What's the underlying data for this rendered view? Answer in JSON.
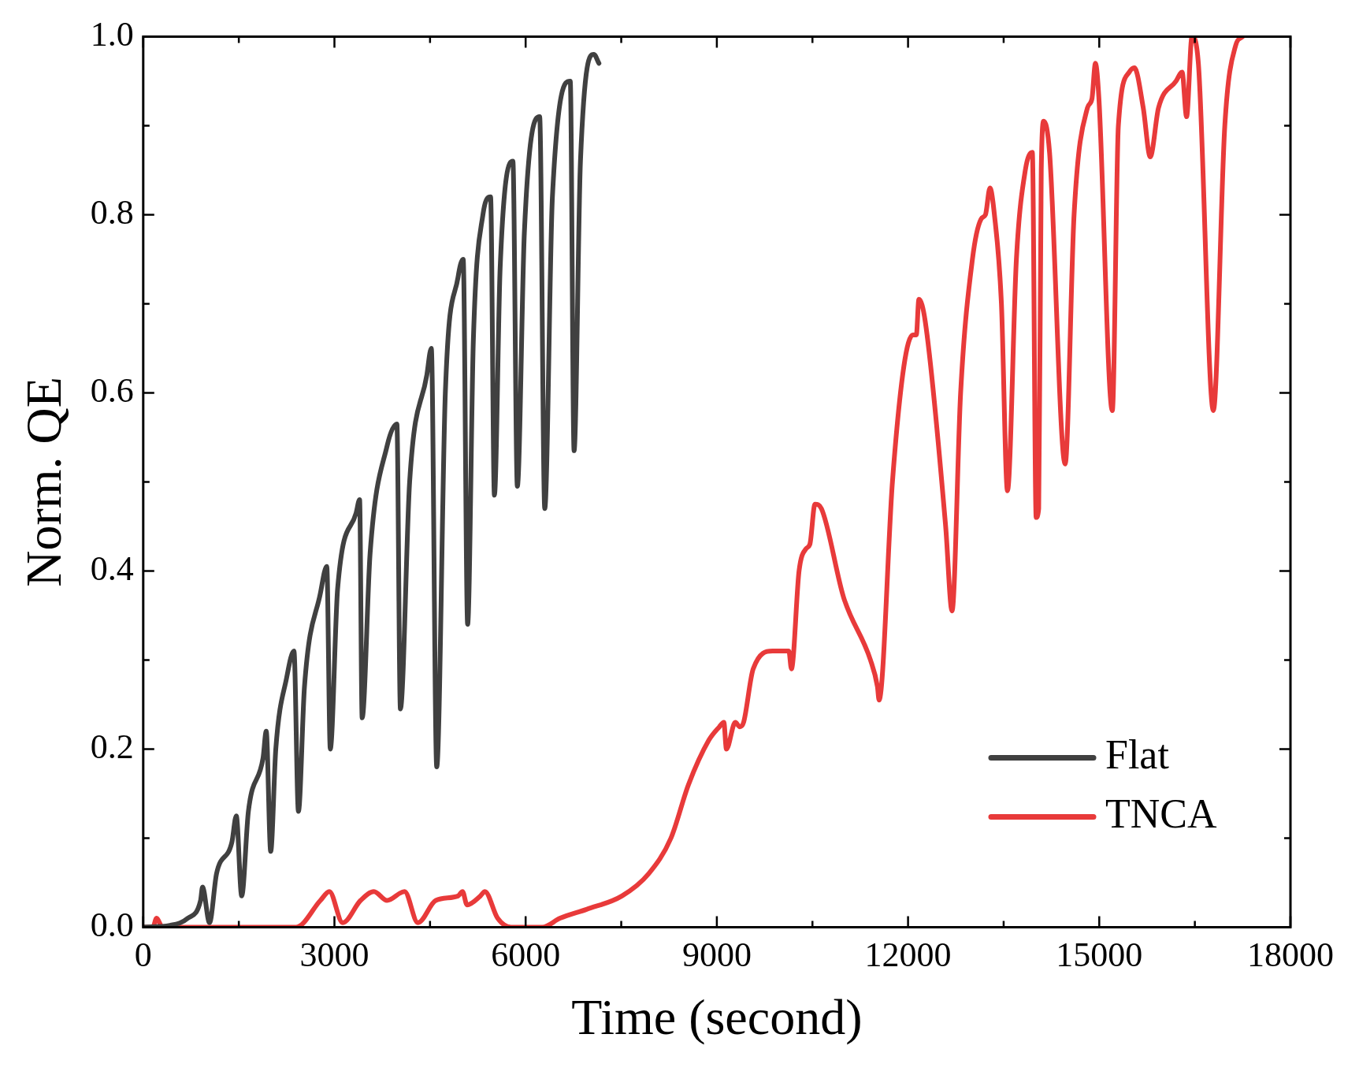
{
  "chart_data": {
    "type": "line",
    "xlabel": "Time (second)",
    "ylabel": "Norm. QE",
    "xlim": [
      0,
      18000
    ],
    "xticks": [
      0,
      3000,
      6000,
      9000,
      12000,
      15000,
      18000
    ],
    "ylim": [
      0,
      1.0
    ],
    "yticks": [
      {
        "value": 0,
        "label": "0.0"
      },
      0.2,
      0.4,
      0.6,
      0.8,
      {
        "value": 1,
        "label": "1.0"
      }
    ],
    "grid": false,
    "legend": "bottom right",
    "marker": "none",
    "line_style": "solid",
    "series": [
      {
        "name": "Flat",
        "color": "#404040",
        "x": [
          0,
          420,
          700,
          900,
          930,
          1040,
          1150,
          1390,
          1460,
          1545,
          1650,
          1880,
          1930,
          2000,
          2080,
          2250,
          2365,
          2435,
          2530,
          2780,
          2880,
          2935,
          3050,
          3340,
          3395,
          3435,
          3560,
          3825,
          3980,
          4035,
          4180,
          4450,
          4520,
          4605,
          4740,
          4940,
          5020,
          5090,
          5180,
          5330,
          5450,
          5510,
          5600,
          5800,
          5870,
          5980,
          6220,
          6300,
          6420,
          6700,
          6760,
          6860,
          7070,
          7150
        ],
        "values": [
          0,
          0.002,
          0.01,
          0.03,
          0.045,
          0.005,
          0.06,
          0.095,
          0.125,
          0.035,
          0.13,
          0.19,
          0.22,
          0.085,
          0.2,
          0.28,
          0.31,
          0.13,
          0.27,
          0.375,
          0.405,
          0.2,
          0.38,
          0.465,
          0.48,
          0.235,
          0.42,
          0.54,
          0.565,
          0.245,
          0.5,
          0.62,
          0.65,
          0.18,
          0.6,
          0.73,
          0.75,
          0.34,
          0.66,
          0.8,
          0.82,
          0.485,
          0.74,
          0.86,
          0.495,
          0.78,
          0.91,
          0.47,
          0.82,
          0.95,
          0.535,
          0.86,
          0.98,
          0.97
        ]
      },
      {
        "name": "TNCA",
        "color": "#e83a3a",
        "x": [
          0,
          150,
          210,
          300,
          2400,
          2780,
          2920,
          3130,
          3410,
          3620,
          3825,
          4100,
          4310,
          4590,
          4940,
          5010,
          5080,
          5290,
          5360,
          5560,
          5770,
          6260,
          6540,
          6955,
          7510,
          7930,
          8280,
          8555,
          8875,
          9040,
          9110,
          9150,
          9290,
          9360,
          9420,
          9570,
          9875,
          10130,
          10170,
          10290,
          10400,
          10460,
          10540,
          10640,
          10990,
          11410,
          11520,
          11545,
          11755,
          11935,
          12075,
          12130,
          12170,
          12270,
          12590,
          12690,
          12825,
          13010,
          13145,
          13215,
          13285,
          13355,
          13465,
          13560,
          13700,
          13840,
          13950,
          14010,
          14050,
          14090,
          14130,
          14220,
          14465,
          14605,
          14815,
          14885,
          14940,
          14995,
          15205,
          15300,
          15470,
          15550,
          15690,
          15800,
          15930,
          16205,
          16300,
          16370,
          16455,
          16555,
          16790,
          16970,
          17140,
          17250
        ],
        "values": [
          0,
          0,
          0.01,
          0,
          0,
          0.03,
          0.04,
          0.005,
          0.03,
          0.04,
          0.03,
          0.04,
          0.005,
          0.03,
          0.035,
          0.04,
          0.025,
          0.035,
          0.04,
          0.01,
          0,
          0,
          0.01,
          0.02,
          0.035,
          0.06,
          0.1,
          0.16,
          0.21,
          0.225,
          0.23,
          0.2,
          0.23,
          0.225,
          0.23,
          0.29,
          0.31,
          0.31,
          0.29,
          0.4,
          0.425,
          0.43,
          0.475,
          0.47,
          0.37,
          0.3,
          0.27,
          0.255,
          0.5,
          0.63,
          0.665,
          0.665,
          0.705,
          0.68,
          0.45,
          0.355,
          0.6,
          0.75,
          0.795,
          0.8,
          0.83,
          0.8,
          0.7,
          0.49,
          0.75,
          0.85,
          0.87,
          0.46,
          0.47,
          0.85,
          0.905,
          0.87,
          0.52,
          0.8,
          0.92,
          0.93,
          0.97,
          0.93,
          0.58,
          0.9,
          0.96,
          0.965,
          0.92,
          0.865,
          0.92,
          0.95,
          0.96,
          0.91,
          1.0,
          0.97,
          0.58,
          0.9,
          0.99,
          1.0
        ]
      }
    ]
  }
}
